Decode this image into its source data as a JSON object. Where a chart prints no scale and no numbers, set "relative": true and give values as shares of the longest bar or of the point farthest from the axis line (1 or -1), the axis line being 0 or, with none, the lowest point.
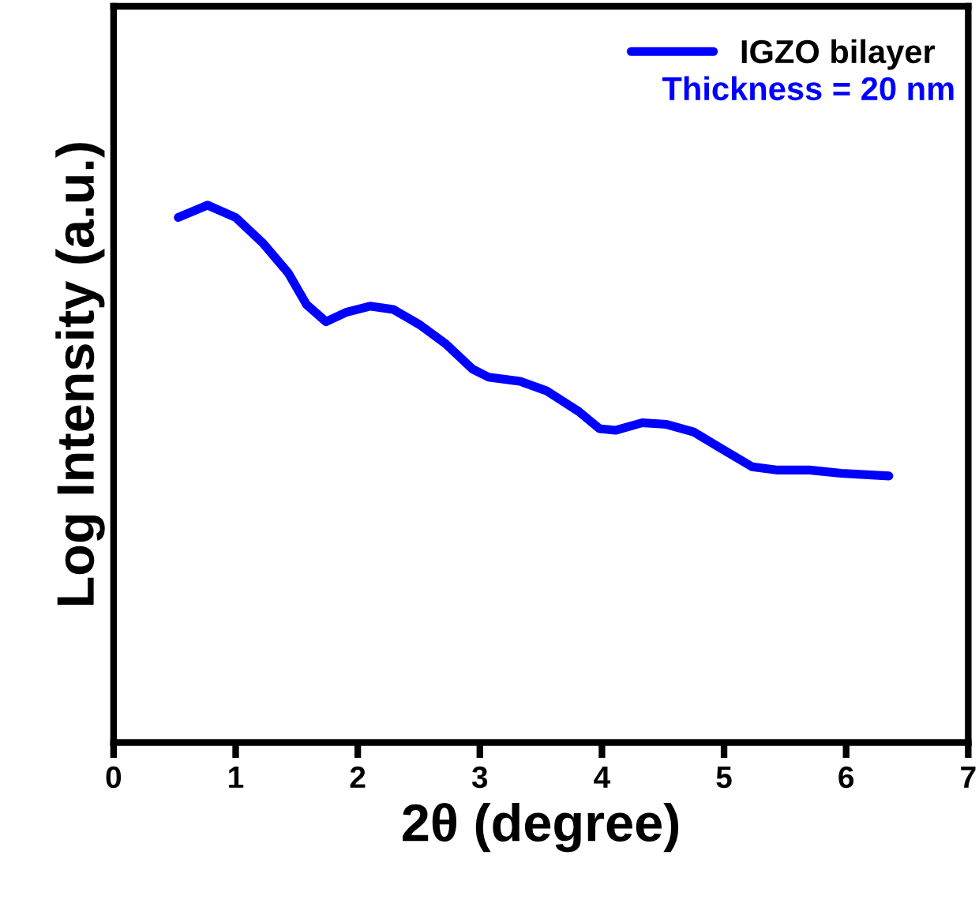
{
  "chart_data": {
    "type": "line",
    "relative": true,
    "xlabel": "2θ (degree)",
    "ylabel": "Log Intensity (a.u.)",
    "xlim": [
      0,
      7
    ],
    "xticks": [
      0,
      1,
      2,
      3,
      4,
      5,
      6,
      7
    ],
    "tick_labels": "x",
    "legend": "top right",
    "annotations": [
      "Thickness = 20 nm"
    ],
    "series": [
      {
        "name": "IGZO bilayer",
        "color": "#0000ff",
        "x": [
          0.53,
          0.77,
          1.0,
          1.22,
          1.43,
          1.58,
          1.74,
          1.91,
          2.1,
          2.29,
          2.51,
          2.72,
          2.94,
          3.07,
          3.33,
          3.55,
          3.81,
          3.98,
          4.11,
          4.33,
          4.53,
          4.75,
          4.97,
          5.23,
          5.44,
          5.7,
          5.96,
          6.35
        ],
        "values": [
          0.977,
          1.0,
          0.977,
          0.93,
          0.874,
          0.815,
          0.783,
          0.801,
          0.812,
          0.806,
          0.777,
          0.742,
          0.695,
          0.68,
          0.672,
          0.654,
          0.616,
          0.584,
          0.581,
          0.595,
          0.592,
          0.578,
          0.548,
          0.513,
          0.507,
          0.507,
          0.501,
          0.496
        ]
      }
    ]
  }
}
